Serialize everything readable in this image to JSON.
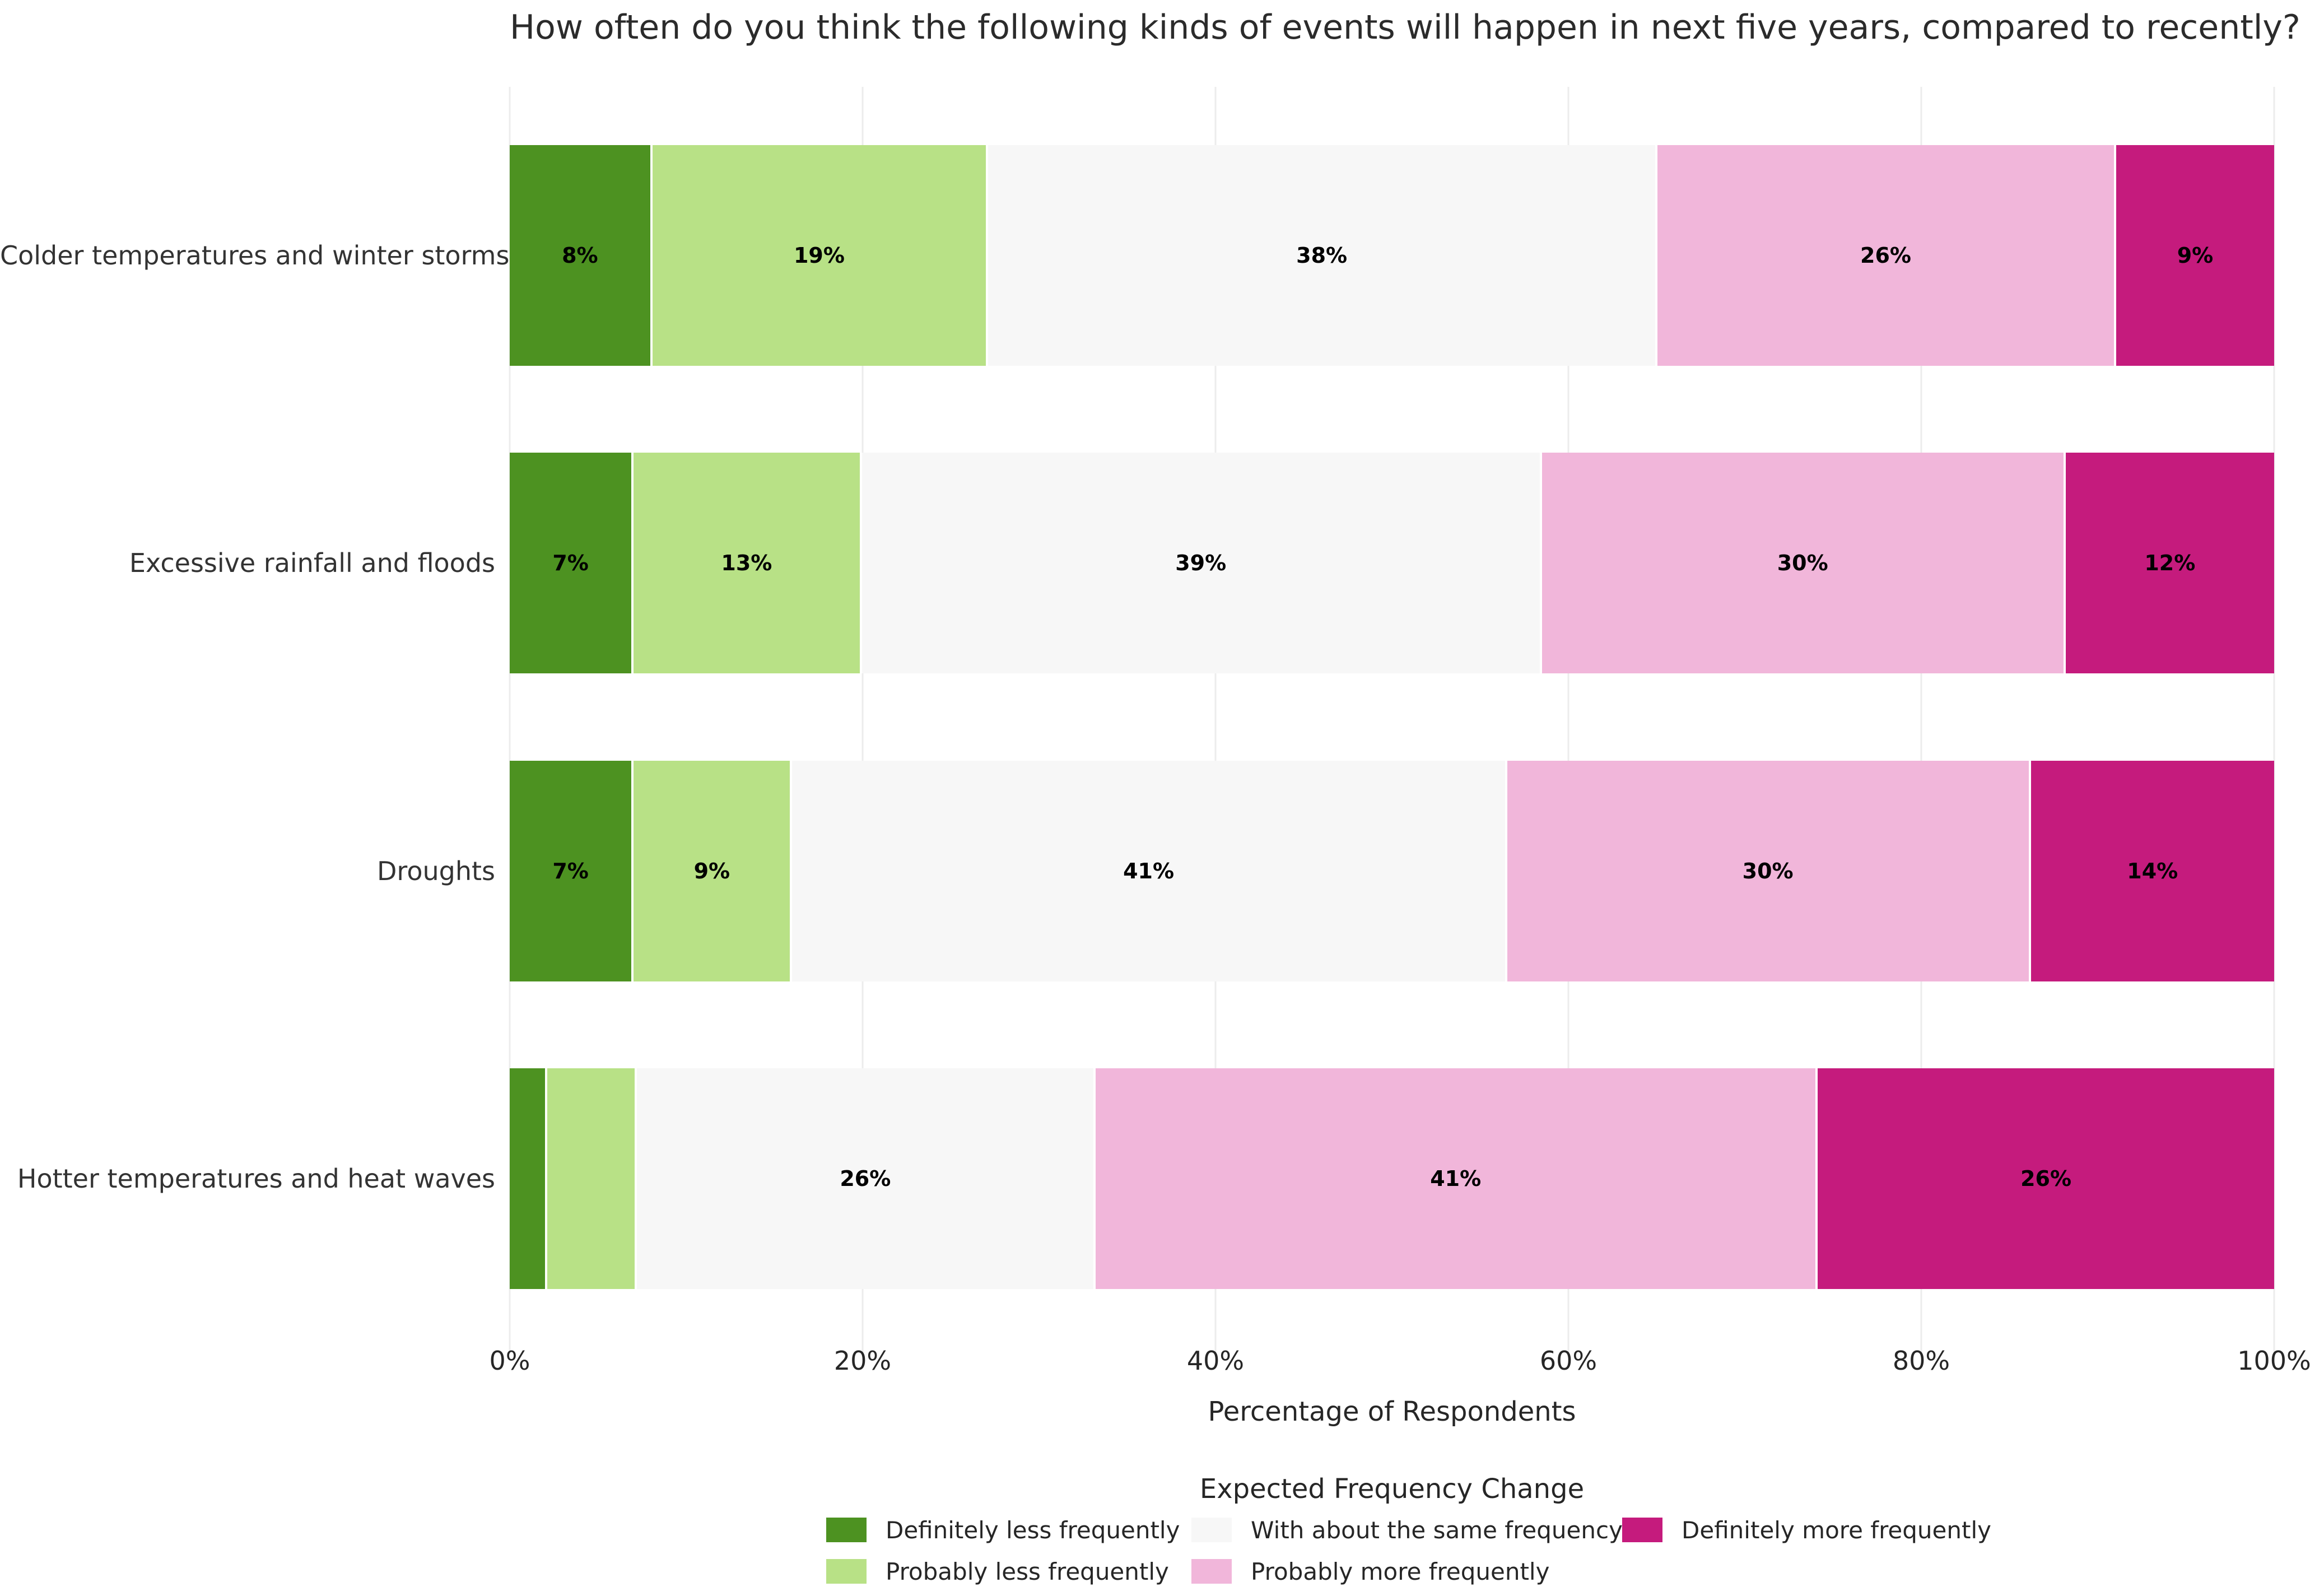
{
  "title": "How often do you think the following kinds of events will happen in next five years, compared to recently?",
  "chart_data": {
    "type": "bar",
    "orientation": "horizontal",
    "stacked": true,
    "title": "How often do you think the following kinds of events will happen in next five years, compared to recently?",
    "xlabel": "Percentage of Respondents",
    "xlim": [
      0,
      100
    ],
    "grid": "vertical light gridlines at each tick, behind bars",
    "xticks": [
      {
        "value": 0,
        "label": "0%"
      },
      {
        "value": 20,
        "label": "20%"
      },
      {
        "value": 40,
        "label": "40%"
      },
      {
        "value": 60,
        "label": "60%"
      },
      {
        "value": 80,
        "label": "80%"
      },
      {
        "value": 100,
        "label": "100%"
      }
    ],
    "categories": [
      "Colder temperatures and winter storms",
      "Excessive rainfall and floods",
      "Droughts",
      "Hotter temperatures and heat waves"
    ],
    "series": [
      {
        "name": "Definitely less frequently",
        "color": "#4d9221",
        "values": [
          8,
          7,
          7,
          2
        ]
      },
      {
        "name": "Probably less frequently",
        "color": "#b8e186",
        "values": [
          19,
          13,
          9,
          5
        ]
      },
      {
        "name": "With about the same frequency",
        "color": "#f7f7f7",
        "values": [
          38,
          39,
          41,
          26
        ]
      },
      {
        "name": "Probably more frequently",
        "color": "#f1b6da",
        "values": [
          26,
          30,
          30,
          41
        ]
      },
      {
        "name": "Definitely more frequently",
        "color": "#c51b7d",
        "values": [
          9,
          12,
          14,
          26
        ]
      }
    ],
    "bar_labels": [
      [
        "8%",
        "19%",
        "38%",
        "26%",
        "9%"
      ],
      [
        "7%",
        "13%",
        "39%",
        "30%",
        "12%"
      ],
      [
        "7%",
        "9%",
        "41%",
        "30%",
        "14%"
      ],
      [
        "",
        "",
        "26%",
        "41%",
        "26%"
      ]
    ],
    "legend": {
      "title": "Expected Frequency Change",
      "position": "bottom-center",
      "columns": [
        [
          0,
          1
        ],
        [
          2,
          3
        ],
        [
          4
        ]
      ],
      "items": [
        {
          "label": "Definitely less frequently",
          "color": "#4d9221"
        },
        {
          "label": "Probably less frequently",
          "color": "#b8e186"
        },
        {
          "label": "With about the same frequency",
          "color": "#f7f7f7"
        },
        {
          "label": "Probably more frequently",
          "color": "#f1b6da"
        },
        {
          "label": "Definitely more frequently",
          "color": "#c51b7d"
        }
      ]
    },
    "colors": {
      "background": "#ffffff",
      "gridline": "#ececec",
      "segment_separator": "#ffffff",
      "bar_value_label": "#000000",
      "text": "#262626"
    }
  }
}
